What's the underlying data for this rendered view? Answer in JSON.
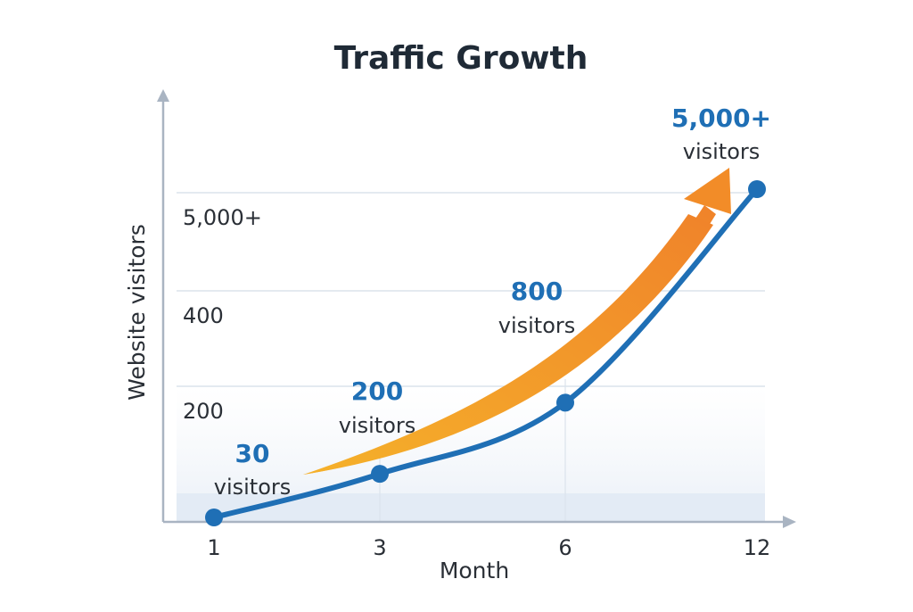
{
  "chart_data": {
    "type": "line",
    "title": "Traffic Growth",
    "xlabel": "Month",
    "ylabel": "Website visitors",
    "x": [
      1,
      3,
      6,
      12
    ],
    "x_tick_labels": [
      "1",
      "3",
      "6",
      "12"
    ],
    "y_tick_labels": [
      "200",
      "400",
      "5,000+"
    ],
    "series": [
      {
        "name": "Website visitors",
        "values": [
          30,
          200,
          800,
          5000
        ]
      }
    ],
    "annotations": [
      {
        "value": "30",
        "unit": "visitors"
      },
      {
        "value": "200",
        "unit": "visitors"
      },
      {
        "value": "800",
        "unit": "visitors"
      },
      {
        "value": "5,000+",
        "unit": "visitors"
      }
    ],
    "grid": true,
    "trend_arrow": "orange upward arrow",
    "colors": {
      "line": "#1f6fb5",
      "arrow": "#f28c28",
      "label": "#1f6fb5",
      "axis": "#a9b4c2",
      "grid": "#dbe3ec"
    }
  }
}
